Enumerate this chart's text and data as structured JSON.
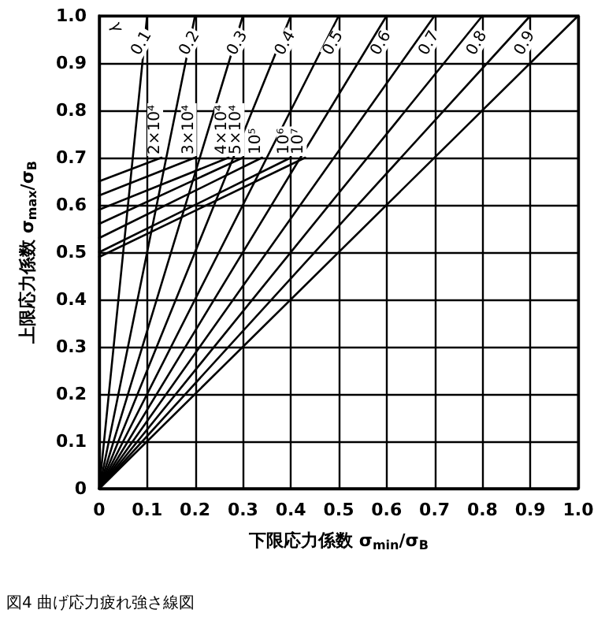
{
  "chart_data": {
    "type": "line",
    "xlabel": "下限応力係数 σ$_{min}$/σ$_{B}$",
    "ylabel": "上限応力係数 σ$_{max}$/σ$_{B}$",
    "xlim": [
      0,
      1
    ],
    "ylim": [
      0,
      1
    ],
    "xticks": [
      0,
      0.1,
      0.2,
      0.3,
      0.4,
      0.5,
      0.6,
      0.7,
      0.8,
      0.9,
      {
        "value": 1,
        "label": "1.0"
      }
    ],
    "yticks": [
      0,
      0.1,
      0.2,
      0.3,
      0.4,
      0.5,
      0.6,
      0.7,
      0.8,
      0.9,
      {
        "value": 1,
        "label": "1.0"
      }
    ],
    "grid": true,
    "marker": "none",
    "line_style": "solid",
    "series": [
      {
        "name": "0.1",
        "color": "#000000",
        "x": [
          0,
          0.1
        ],
        "values": [
          0,
          1
        ]
      },
      {
        "name": "0.2",
        "color": "#000000",
        "x": [
          0,
          0.2
        ],
        "values": [
          0,
          1
        ]
      },
      {
        "name": "0.3",
        "color": "#000000",
        "x": [
          0,
          0.3
        ],
        "values": [
          0,
          1
        ]
      },
      {
        "name": "0.4",
        "color": "#000000",
        "x": [
          0,
          0.4
        ],
        "values": [
          0,
          1
        ]
      },
      {
        "name": "0.5",
        "color": "#000000",
        "x": [
          0,
          0.5
        ],
        "values": [
          0,
          1
        ]
      },
      {
        "name": "0.6",
        "color": "#000000",
        "x": [
          0,
          0.6
        ],
        "values": [
          0,
          1
        ]
      },
      {
        "name": "0.7",
        "color": "#000000",
        "x": [
          0,
          0.7
        ],
        "values": [
          0,
          1
        ]
      },
      {
        "name": "0.8",
        "color": "#000000",
        "x": [
          0,
          0.8
        ],
        "values": [
          0,
          1
        ]
      },
      {
        "name": "0.9",
        "color": "#000000",
        "x": [
          0,
          0.9
        ],
        "values": [
          0,
          1
        ]
      },
      {
        "color": "#000000",
        "x": [
          0,
          1.0
        ],
        "values": [
          0,
          1
        ]
      },
      {
        "name": "2×10⁴",
        "color": "#000000",
        "x": [
          0,
          0.13
        ],
        "values": [
          0.65,
          0.7
        ]
      },
      {
        "name": "3×10⁴",
        "color": "#000000",
        "x": [
          0,
          0.2
        ],
        "values": [
          0.62,
          0.7
        ]
      },
      {
        "name": "4×10⁴",
        "color": "#000000",
        "x": [
          0,
          0.27
        ],
        "values": [
          0.59,
          0.7
        ]
      },
      {
        "name": "5×10⁴",
        "color": "#000000",
        "x": [
          0,
          0.3
        ],
        "values": [
          0.56,
          0.7
        ]
      },
      {
        "name": "10⁵",
        "color": "#000000",
        "x": [
          0,
          0.34
        ],
        "values": [
          0.53,
          0.7
        ]
      },
      {
        "name": "10⁶",
        "color": "#000000",
        "x": [
          0,
          0.4
        ],
        "values": [
          0.5,
          0.7
        ]
      },
      {
        "name": "10⁷",
        "color": "#000000",
        "x": [
          0,
          0.43
        ],
        "values": [
          0.49,
          0.7
        ]
      }
    ],
    "annotations": [
      "γ",
      "図4 曲げ応力疲れ強さ線図"
    ]
  }
}
